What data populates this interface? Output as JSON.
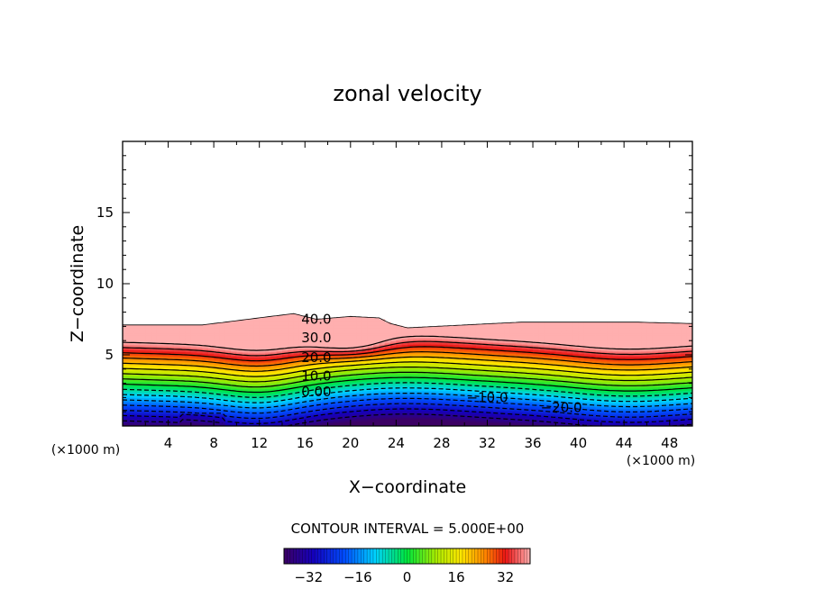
{
  "chart_data": {
    "type": "contour",
    "title": "zonal velocity",
    "xlabel": "X−coordinate",
    "ylabel": "Z−coordinate",
    "x_unit": "(×1000 m)",
    "y_unit": "(×1000 m)",
    "xlim": [
      0,
      50
    ],
    "ylim": [
      0,
      20
    ],
    "x_ticks": [
      4,
      8,
      12,
      16,
      20,
      24,
      28,
      32,
      36,
      40,
      44,
      48
    ],
    "y_ticks": [
      5,
      10,
      15
    ],
    "contour_interval_text": "CONTOUR INTERVAL = 5.000E+00",
    "contour_interval": 5,
    "contour_labels": [
      {
        "value": 40,
        "text": "40.0",
        "x": 17,
        "z": 7.5
      },
      {
        "value": 30,
        "text": "30.0",
        "x": 17,
        "z": 6.2
      },
      {
        "value": 20,
        "text": "20.0",
        "x": 17,
        "z": 4.8
      },
      {
        "value": 10,
        "text": "10.0",
        "x": 17,
        "z": 3.5
      },
      {
        "value": 0,
        "text": "0.00",
        "x": 17,
        "z": 2.4
      },
      {
        "value": -10,
        "text": "−10.0",
        "x": 32,
        "z": 2.0
      },
      {
        "value": -20,
        "text": "−20.0",
        "x": 38.5,
        "z": 1.3
      }
    ],
    "domain_top": {
      "x": [
        0,
        7,
        10,
        13,
        15,
        16,
        17,
        20,
        22.5,
        23.5,
        25,
        30,
        35,
        40,
        45,
        50
      ],
      "z": [
        7.1,
        7.1,
        7.4,
        7.7,
        7.9,
        7.7,
        7.5,
        7.7,
        7.6,
        7.2,
        6.9,
        7.1,
        7.3,
        7.3,
        7.3,
        7.2
      ]
    },
    "colorbar": {
      "min": -40,
      "max": 40,
      "tick_labels": [
        "−32",
        "−16",
        "0",
        "16",
        "32"
      ],
      "tick_values": [
        -32,
        -16,
        0,
        16,
        32
      ]
    }
  }
}
